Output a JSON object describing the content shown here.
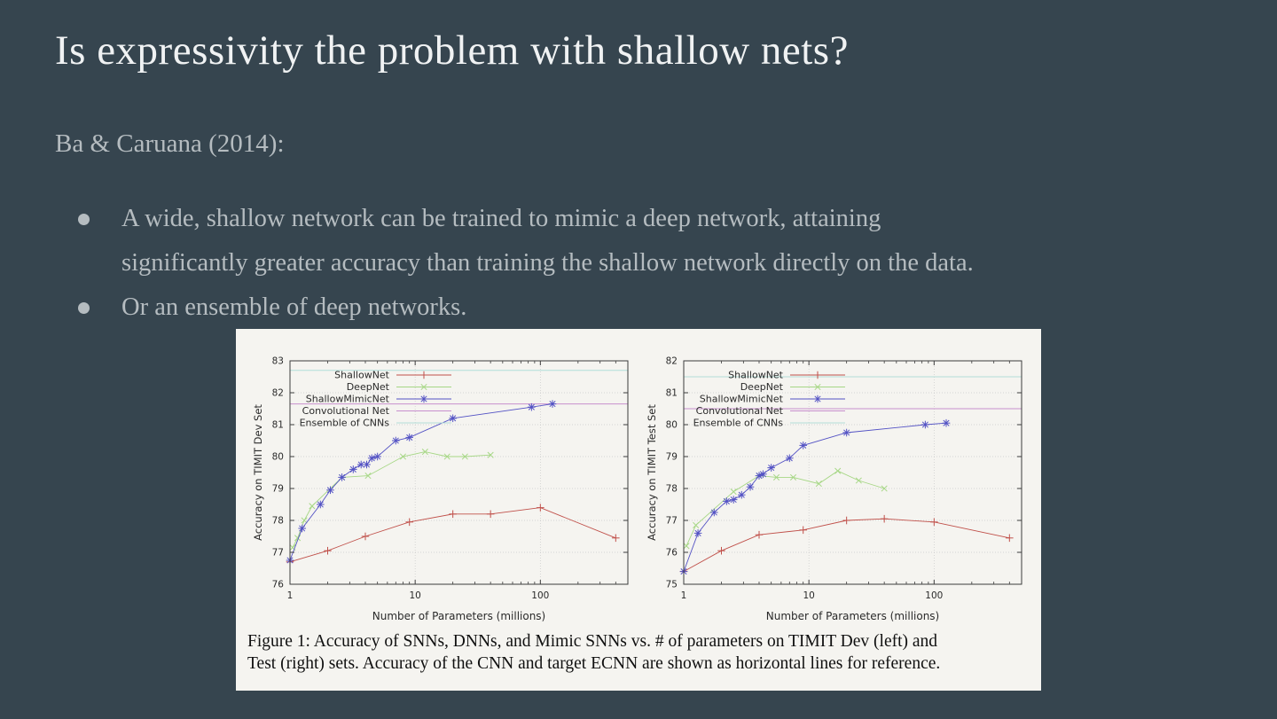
{
  "slide": {
    "title": "Is expressivity the problem with shallow nets?",
    "subtitle": "Ba & Caruana (2014):",
    "bullets": [
      {
        "lines": [
          "A wide, shallow network can be trained to mimic a deep network, attaining",
          "significantly greater accuracy than training the shallow network directly on the data."
        ]
      },
      {
        "lines": [
          "Or an ensemble of deep networks."
        ]
      }
    ],
    "colors": {
      "background": "#36454f",
      "title_text": "#f0f2f3",
      "body_text": "#b5bcc0",
      "figure_background": "#f5f4f0"
    }
  },
  "figure": {
    "caption_line1": "Figure 1: Accuracy of SNNs, DNNs, and Mimic SNNs vs. # of parameters on TIMIT Dev (left) and",
    "caption_line2": "Test (right) sets. Accuracy of the CNN and target ECNN are shown as horizontal lines for reference."
  },
  "chart_data": [
    {
      "type": "line",
      "title": "",
      "xlabel": "Number of Parameters (millions)",
      "ylabel": "Accuracy on TIMIT Dev Set",
      "x_scale": "log",
      "xlim": [
        1,
        500
      ],
      "ylim": [
        76,
        83
      ],
      "x_ticks": [
        1,
        10,
        100
      ],
      "y_ticks": [
        76,
        77,
        78,
        79,
        80,
        81,
        82,
        83
      ],
      "grid": true,
      "legend_position": "top-left",
      "series": [
        {
          "name": "ShallowNet",
          "color": "#c0504a",
          "marker": "plus",
          "x": [
            1,
            2,
            4,
            9,
            20,
            40,
            100,
            400
          ],
          "y": [
            76.7,
            77.05,
            77.5,
            77.95,
            78.2,
            78.2,
            78.4,
            77.45
          ]
        },
        {
          "name": "DeepNet",
          "color": "#a6d785",
          "marker": "x",
          "x": [
            1.05,
            1.15,
            1.3,
            1.5,
            2.6,
            4.2,
            8,
            12,
            18,
            25,
            40
          ],
          "y": [
            77.15,
            77.45,
            78.0,
            78.45,
            79.35,
            79.4,
            80.0,
            80.15,
            80.0,
            80.0,
            80.05
          ]
        },
        {
          "name": "ShallowMimicNet",
          "color": "#5352c4",
          "marker": "star",
          "x": [
            1,
            1.25,
            1.75,
            2.1,
            2.6,
            3.2,
            3.7,
            4.1,
            4.5,
            5,
            7,
            9,
            20,
            85,
            125
          ],
          "y": [
            76.75,
            77.75,
            78.5,
            78.95,
            79.35,
            79.6,
            79.75,
            79.75,
            79.95,
            80.0,
            80.5,
            80.6,
            81.2,
            81.55,
            81.65
          ]
        },
        {
          "name": "Convolutional Net",
          "color": "#c88fce",
          "hline": 81.65
        },
        {
          "name": "Ensemble of CNNs",
          "color": "#b2ded9",
          "hline": 82.7
        }
      ]
    },
    {
      "type": "line",
      "title": "",
      "xlabel": "Number of Parameters (millions)",
      "ylabel": "Accuracy on TIMIT Test Set",
      "x_scale": "log",
      "xlim": [
        1,
        500
      ],
      "ylim": [
        75,
        82
      ],
      "x_ticks": [
        1,
        10,
        100
      ],
      "y_ticks": [
        75,
        76,
        77,
        78,
        79,
        80,
        81,
        82
      ],
      "grid": true,
      "legend_position": "top-left",
      "series": [
        {
          "name": "ShallowNet",
          "color": "#c0504a",
          "marker": "plus",
          "x": [
            1,
            2,
            4,
            9,
            20,
            40,
            100,
            400
          ],
          "y": [
            75.4,
            76.05,
            76.55,
            76.7,
            77.0,
            77.05,
            76.95,
            76.45
          ]
        },
        {
          "name": "DeepNet",
          "color": "#a6d785",
          "marker": "x",
          "x": [
            1.05,
            1.25,
            2.5,
            4,
            5.5,
            7.5,
            12,
            17,
            25,
            40
          ],
          "y": [
            76.2,
            76.85,
            77.9,
            78.4,
            78.35,
            78.35,
            78.15,
            78.55,
            78.25,
            78.0
          ]
        },
        {
          "name": "ShallowMimicNet",
          "color": "#5352c4",
          "marker": "star",
          "x": [
            1,
            1.3,
            1.75,
            2.2,
            2.5,
            2.9,
            3.4,
            4,
            4.3,
            5,
            7,
            9,
            20,
            85,
            125
          ],
          "y": [
            75.4,
            76.6,
            77.25,
            77.6,
            77.65,
            77.8,
            78.05,
            78.4,
            78.45,
            78.65,
            78.95,
            79.35,
            79.75,
            80.0,
            80.05
          ]
        },
        {
          "name": "Convolutional Net",
          "color": "#c88fce",
          "hline": 80.5
        },
        {
          "name": "Ensemble of CNNs",
          "color": "#b2ded9",
          "hline": 81.5
        }
      ]
    }
  ]
}
